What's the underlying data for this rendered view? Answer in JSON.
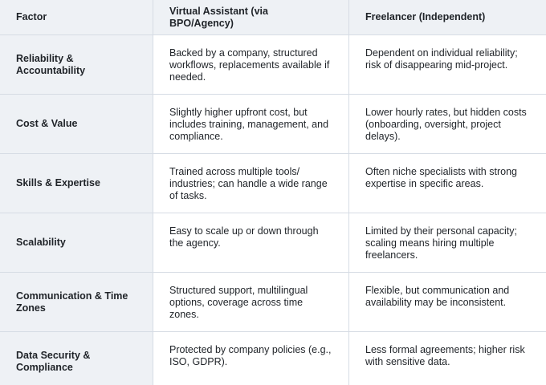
{
  "table": {
    "header": [
      "Factor",
      "Virtual Assistant (via BPO/Agency)",
      "Freelancer (Independent)"
    ],
    "rows": [
      [
        "Reliability & Accountability",
        "Backed by a company, structured workflows, replacements available if needed.",
        "Dependent on individual reliability; risk of disappearing mid-project."
      ],
      [
        "Cost & Value",
        "Slightly higher upfront cost, but includes training, management, and compliance.",
        "Lower hourly rates, but hidden costs (onboarding, oversight, project delays)."
      ],
      [
        "Skills & Expertise",
        "Trained across multiple tools/ industries; can handle a wide range of tasks.",
        "Often niche specialists with strong expertise in specific areas."
      ],
      [
        "Scalability",
        "Easy to scale up or down through the agency.",
        "Limited by their personal capacity; scaling means hiring multiple freelancers."
      ],
      [
        "Communication & Time Zones",
        "Structured support, multilingual options, coverage across time zones.",
        "Flexible, but communication and availability may be inconsistent."
      ],
      [
        "Data Security & Compliance",
        "Protected by company policies (e.g., ISO, GDPR).",
        "Less formal agreements; higher risk with sensitive data."
      ]
    ]
  }
}
